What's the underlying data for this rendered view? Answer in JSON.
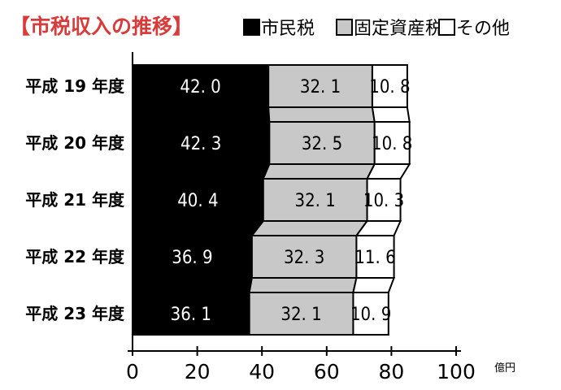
{
  "chart_data": {
    "type": "bar",
    "orientation": "horizontal",
    "stacked": true,
    "title": "【市税収入の推移】",
    "categories": [
      "平成 19 年度",
      "平成 20 年度",
      "平成 21 年度",
      "平成 22 年度",
      "平成 23 年度"
    ],
    "series": [
      {
        "name": "市民税",
        "color": "#000000",
        "label_color": "#ffffff",
        "values": [
          42.0,
          42.3,
          40.4,
          36.9,
          36.1
        ],
        "labels": [
          "42. 0",
          "42. 3",
          "40. 4",
          "36. 9",
          "36. 1"
        ]
      },
      {
        "name": "固定資産税",
        "color": "#c8c8c8",
        "label_color": "#000000",
        "values": [
          32.1,
          32.5,
          32.1,
          32.3,
          32.1
        ],
        "labels": [
          "32. 1",
          "32. 5",
          "32. 1",
          "32. 3",
          "32. 1"
        ]
      },
      {
        "name": "その他",
        "color": "#ffffff",
        "label_color": "#000000",
        "values": [
          10.8,
          10.8,
          10.3,
          11.6,
          10.9
        ],
        "labels": [
          "10. 8",
          "10. 8",
          "10. 3",
          "11. 6",
          "10. 9"
        ]
      }
    ],
    "xlim": [
      0,
      100
    ],
    "xticks": [
      0,
      20,
      40,
      60,
      80,
      100
    ],
    "x_unit": "億円",
    "grid": false,
    "legend_position": "top"
  },
  "colors": {
    "title": "#d93a3a",
    "bar_outline": "#000000",
    "legend_fill_gray": "#c8c8c8"
  }
}
